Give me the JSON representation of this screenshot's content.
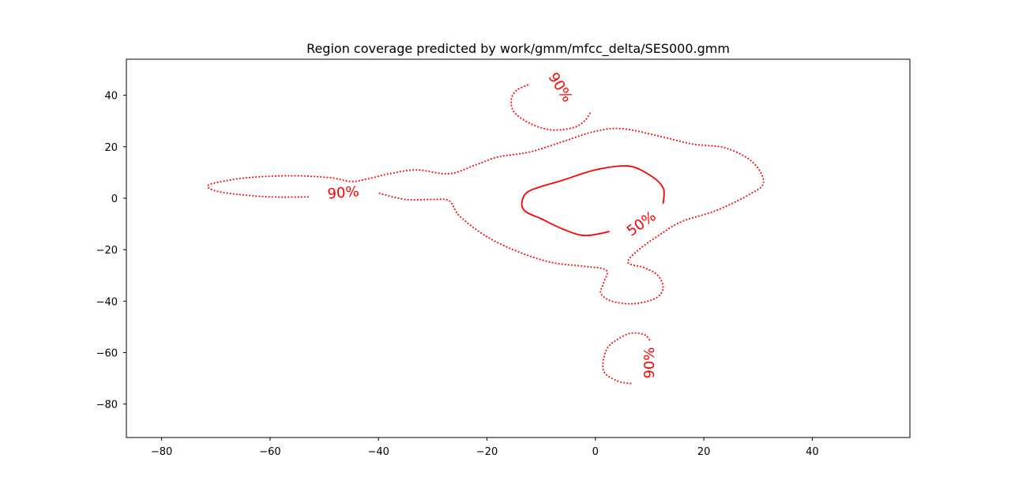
{
  "chart_data": {
    "type": "contour",
    "title": "Region coverage predicted by work/gmm/mfcc_delta/SES000.gmm",
    "xlabel": "",
    "ylabel": "",
    "xlim": [
      -86.5,
      58
    ],
    "ylim": [
      -93,
      54
    ],
    "grid": false,
    "x_ticks": [
      -80,
      -60,
      -40,
      -20,
      0,
      20,
      40
    ],
    "y_ticks": [
      -80,
      -60,
      -40,
      -20,
      0,
      20,
      40
    ],
    "colors": {
      "contour": "#ff0000",
      "axes": "#000000",
      "background": "#ffffff"
    },
    "levels": [
      {
        "name": "50%",
        "style": "solid",
        "paths": [
          {
            "points": [
              [
                2.5,
                -13
              ],
              [
                -2,
                -14.5
              ],
              [
                -6,
                -12
              ],
              [
                -10,
                -8
              ],
              [
                -13,
                -5
              ],
              [
                -13.5,
                -1
              ],
              [
                -12,
                3
              ],
              [
                -6,
                7
              ],
              [
                0,
                11
              ],
              [
                6,
                12.5
              ],
              [
                10,
                9
              ],
              [
                12.5,
                4
              ],
              [
                12.5,
                -2
              ]
            ],
            "labels": [
              {
                "text": "50%",
                "x": 8.5,
                "y": -10,
                "angle": -35
              }
            ]
          }
        ]
      },
      {
        "name": "90%",
        "style": "dotted",
        "paths": [
          {
            "points": [
              [
                -53,
                0.5
              ],
              [
                -60,
                0.5
              ],
              [
                -66,
                1.5
              ],
              [
                -70,
                2.8
              ],
              [
                -71.5,
                4.5
              ],
              [
                -70,
                6
              ],
              [
                -64,
                8
              ],
              [
                -56,
                8.7
              ],
              [
                -49,
                8
              ],
              [
                -45,
                6.5
              ],
              [
                -42,
                7.5
              ],
              [
                -38,
                9.5
              ],
              [
                -33,
                11
              ],
              [
                -27,
                9.5
              ],
              [
                -22,
                13
              ],
              [
                -18,
                16
              ],
              [
                -12,
                18
              ],
              [
                -6,
                22
              ],
              [
                0,
                26
              ],
              [
                5,
                27
              ],
              [
                12,
                24
              ],
              [
                18,
                21
              ],
              [
                24,
                19.5
              ],
              [
                29,
                14
              ],
              [
                31,
                6
              ],
              [
                28,
                1
              ],
              [
                22,
                -5
              ],
              [
                16,
                -9
              ],
              [
                12,
                -14
              ],
              [
                8,
                -20
              ],
              [
                6,
                -25
              ],
              [
                9,
                -27
              ],
              [
                11.5,
                -30
              ],
              [
                12.5,
                -35
              ],
              [
                11,
                -39
              ],
              [
                7,
                -41
              ],
              [
                3,
                -40
              ],
              [
                1,
                -37
              ],
              [
                1.5,
                -33
              ],
              [
                2,
                -28
              ],
              [
                -2,
                -26.5
              ],
              [
                -8,
                -25
              ],
              [
                -14,
                -21
              ],
              [
                -20,
                -15
              ],
              [
                -25,
                -7
              ],
              [
                -27,
                -1
              ],
              [
                -30,
                -0.5
              ],
              [
                -35,
                -0.5
              ],
              [
                -40,
                2
              ]
            ],
            "labels": [
              {
                "text": "90%",
                "x": -46.5,
                "y": 2,
                "angle": -5
              }
            ]
          },
          {
            "points": [
              [
                -12.5,
                44
              ],
              [
                -14.5,
                42
              ],
              [
                -15.5,
                38.5
              ],
              [
                -15,
                33.5
              ],
              [
                -12,
                29
              ],
              [
                -8,
                26.5
              ],
              [
                -4,
                27.5
              ],
              [
                -2,
                30
              ],
              [
                -1,
                33
              ]
            ],
            "labels": [
              {
                "text": "90%",
                "x": -6.5,
                "y": 43,
                "angle": 58
              }
            ]
          },
          {
            "points": [
              [
                6.5,
                -72
              ],
              [
                4,
                -71
              ],
              [
                1.5,
                -67
              ],
              [
                2,
                -59
              ],
              [
                4,
                -55
              ],
              [
                6.5,
                -52.5
              ],
              [
                9,
                -53
              ],
              [
                10,
                -55
              ]
            ],
            "labels": [
              {
                "text": "90%",
                "x": 10,
                "y": -64,
                "angle": -90
              }
            ]
          }
        ]
      }
    ]
  }
}
